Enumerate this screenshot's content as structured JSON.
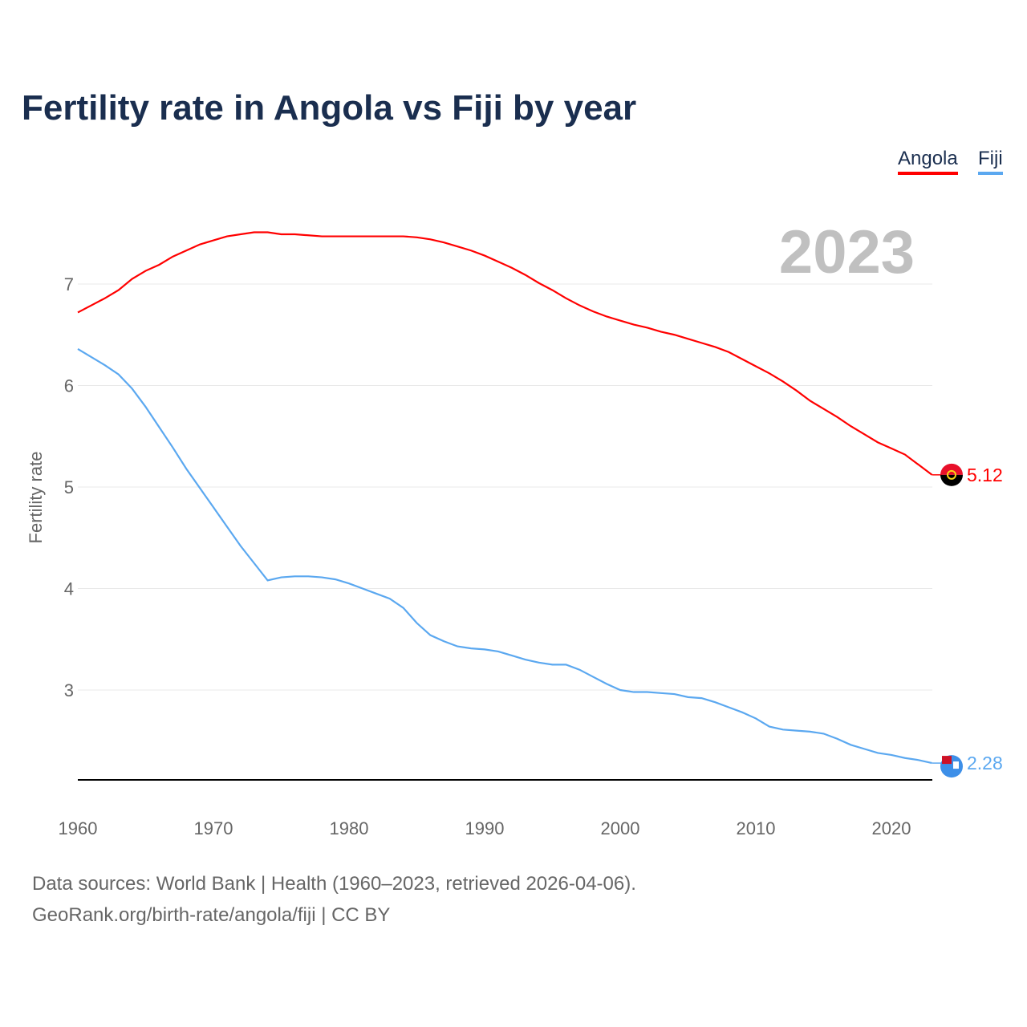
{
  "title": "Fertility rate in Angola vs Fiji by year",
  "year_watermark": "2023",
  "source_line1": "Data sources: World Bank | Health (1960–2023, retrieved 2026-04-06).",
  "source_line2": "GeoRank.org/birth-rate/angola/fiji | CC BY",
  "chart_data": {
    "type": "line",
    "title": "Fertility rate in Angola vs Fiji by year",
    "xlabel": "",
    "ylabel": "Fertility rate",
    "xlim": [
      1960,
      2023
    ],
    "ylim": [
      2.11,
      7.6
    ],
    "xticks": [
      "1960",
      "1970",
      "1980",
      "1990",
      "2000",
      "2010",
      "2020"
    ],
    "yticks": [
      "3",
      "4",
      "5",
      "6",
      "7"
    ],
    "grid": true,
    "legend_position": "top-right",
    "series": [
      {
        "name": "Angola",
        "color": "#ff0000",
        "end_label": "5.12",
        "values": [
          6.72,
          6.79,
          6.86,
          6.94,
          7.05,
          7.13,
          7.19,
          7.27,
          7.33,
          7.39,
          7.43,
          7.47,
          7.49,
          7.51,
          7.51,
          7.49,
          7.49,
          7.48,
          7.47,
          7.47,
          7.47,
          7.47,
          7.47,
          7.47,
          7.47,
          7.46,
          7.44,
          7.41,
          7.37,
          7.33,
          7.28,
          7.22,
          7.16,
          7.09,
          7.01,
          6.94,
          6.86,
          6.79,
          6.73,
          6.68,
          6.64,
          6.6,
          6.57,
          6.53,
          6.5,
          6.46,
          6.42,
          6.38,
          6.33,
          6.26,
          6.19,
          6.12,
          6.04,
          5.95,
          5.85,
          5.77,
          5.69,
          5.6,
          5.52,
          5.44,
          5.38,
          5.32,
          5.22,
          5.12
        ]
      },
      {
        "name": "Fiji",
        "color": "#5ba8f0",
        "end_label": "2.28",
        "values": [
          6.36,
          6.28,
          6.2,
          6.11,
          5.97,
          5.79,
          5.59,
          5.39,
          5.18,
          4.99,
          4.8,
          4.61,
          4.42,
          4.25,
          4.08,
          4.11,
          4.12,
          4.12,
          4.11,
          4.09,
          4.05,
          4.0,
          3.95,
          3.9,
          3.81,
          3.66,
          3.54,
          3.48,
          3.43,
          3.41,
          3.4,
          3.38,
          3.34,
          3.3,
          3.27,
          3.25,
          3.25,
          3.2,
          3.13,
          3.06,
          3.0,
          2.98,
          2.98,
          2.97,
          2.96,
          2.93,
          2.92,
          2.88,
          2.83,
          2.78,
          2.72,
          2.64,
          2.61,
          2.6,
          2.59,
          2.57,
          2.52,
          2.46,
          2.42,
          2.38,
          2.36,
          2.33,
          2.31,
          2.28
        ]
      }
    ]
  }
}
